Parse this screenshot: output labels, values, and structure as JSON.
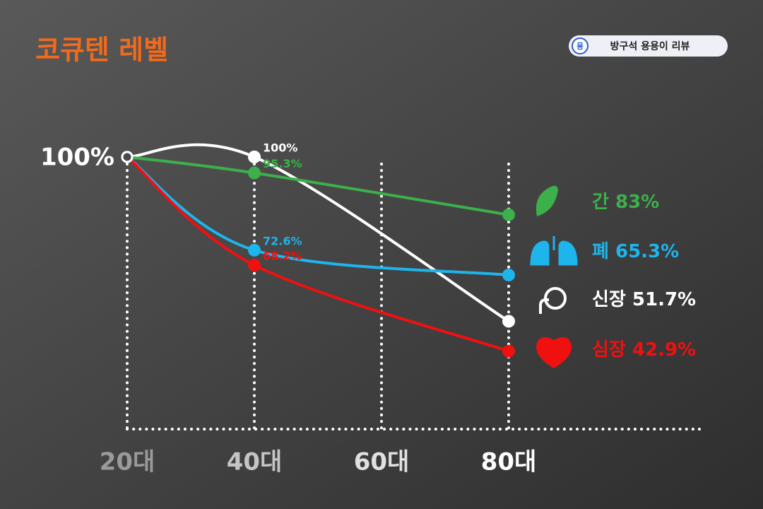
{
  "chart_data": {
    "type": "line",
    "title": "코큐텐 레벨",
    "badge": {
      "icon": "용",
      "text": "방구석 용용이 리뷰"
    },
    "x": [
      20,
      40,
      80
    ],
    "xlim": [
      20,
      110
    ],
    "xticks": [
      {
        "value": 20,
        "label": "20대"
      },
      {
        "value": 40,
        "label": "40대"
      },
      {
        "value": 60,
        "label": "60대"
      },
      {
        "value": 80,
        "label": "80대"
      }
    ],
    "ylim": [
      20,
      100
    ],
    "yticks": [
      {
        "value": 100,
        "label": "100%"
      }
    ],
    "series": [
      {
        "name": "신장",
        "color": "#ffffff",
        "values": [
          100,
          100,
          51.7
        ],
        "value_labels": [
          null,
          "100%",
          "51.7%"
        ]
      },
      {
        "name": "간",
        "color": "#3cb04a",
        "values": [
          100,
          95.3,
          83
        ],
        "value_labels": [
          null,
          "95.3%",
          "83%"
        ]
      },
      {
        "name": "폐",
        "color": "#1eb4ec",
        "values": [
          100,
          72.6,
          65.3
        ],
        "value_labels": [
          null,
          "72.6%",
          "65.3%"
        ]
      },
      {
        "name": "심장",
        "color": "#f01010",
        "values": [
          100,
          68.2,
          42.9
        ],
        "value_labels": [
          null,
          "68.2%",
          "42.9%"
        ]
      }
    ]
  }
}
